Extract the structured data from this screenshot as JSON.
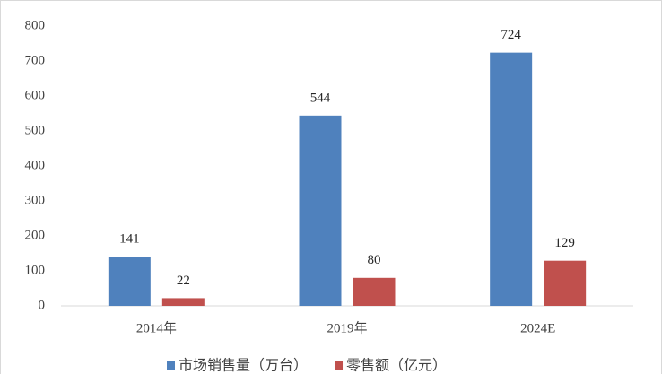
{
  "chart_data": {
    "type": "bar",
    "categories": [
      "2014年",
      "2019年",
      "2024E"
    ],
    "series": [
      {
        "name": "市场销售量（万台）",
        "color": "#4f81bd",
        "values": [
          141,
          544,
          724
        ]
      },
      {
        "name": "零售额（亿元）",
        "color": "#c0504d",
        "values": [
          22,
          80,
          129
        ]
      }
    ],
    "ylim": [
      0,
      800
    ],
    "yticks": [
      0,
      100,
      200,
      300,
      400,
      500,
      600,
      700,
      800
    ],
    "grid": false,
    "legend": "bottom"
  }
}
